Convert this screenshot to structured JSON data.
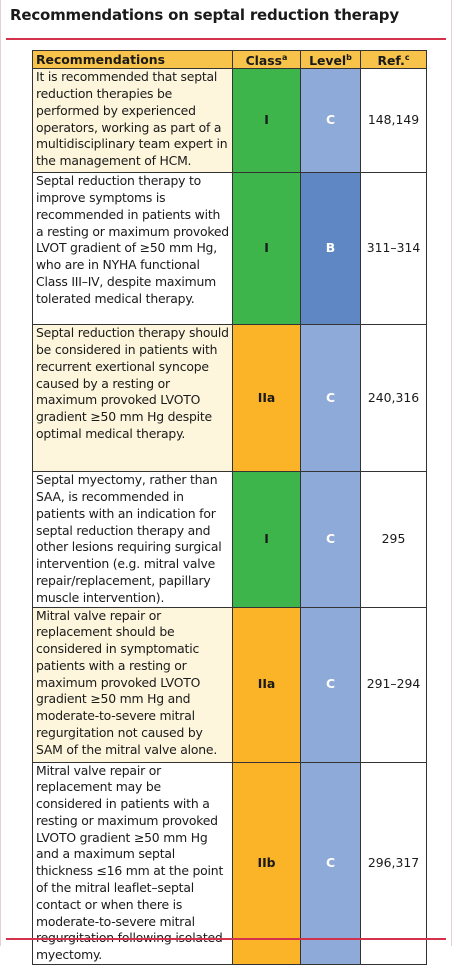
{
  "header": {
    "title": "Recommendations on septal reduction therapy"
  },
  "table": {
    "columns": [
      {
        "text": "Recommendations",
        "sup": null
      },
      {
        "text": "Class",
        "sup": "a"
      },
      {
        "text": "Level",
        "sup": "b"
      },
      {
        "text": "Ref.",
        "sup": "c"
      }
    ],
    "rows": [
      [
        "It is recommended that septal reduction therapies be performed by experienced operators, working as part of a multidisciplinary team expert in the management of HCM.",
        "I",
        "C",
        "148,149"
      ],
      [
        "Septal reduction therapy to improve symptoms is recommended in patients with a resting or maximum provoked LVOT gradient of ≥50 mm Hg, who are in NYHA functional Class III–IV, despite maximum tolerated medical therapy.",
        "I",
        "B",
        "311–314"
      ],
      [
        "Septal reduction therapy should be considered in patients with recurrent exertional syncope caused by a resting or maximum provoked LVOTO gradient ≥50 mm Hg despite optimal medical therapy.",
        "IIa",
        "C",
        "240,316"
      ],
      [
        "Septal myectomy, rather than SAA, is recommended in patients with an indication for septal reduction therapy and other lesions requiring surgical intervention (e.g. mitral valve repair/replacement, papillary muscle intervention).",
        "I",
        "C",
        "295"
      ],
      [
        "Mitral valve repair or replacement should be considered in symptomatic patients with a resting or maximum provoked LVOTO gradient ≥50 mm Hg and moderate-to-severe mitral regurgitation not caused by SAM of the mitral valve alone.",
        "IIa",
        "C",
        "291–294"
      ],
      [
        "Mitral valve repair or replacement may be considered in patients with a resting or maximum provoked LVOTO gradient ≥50 mm Hg and a maximum septal thickness ≤16 mm at the point of the mitral leaflet–septal contact or when there is moderate-to-severe mitral regurgitation following isolated myectomy.",
        "IIb",
        "C",
        "296,317"
      ]
    ]
  }
}
